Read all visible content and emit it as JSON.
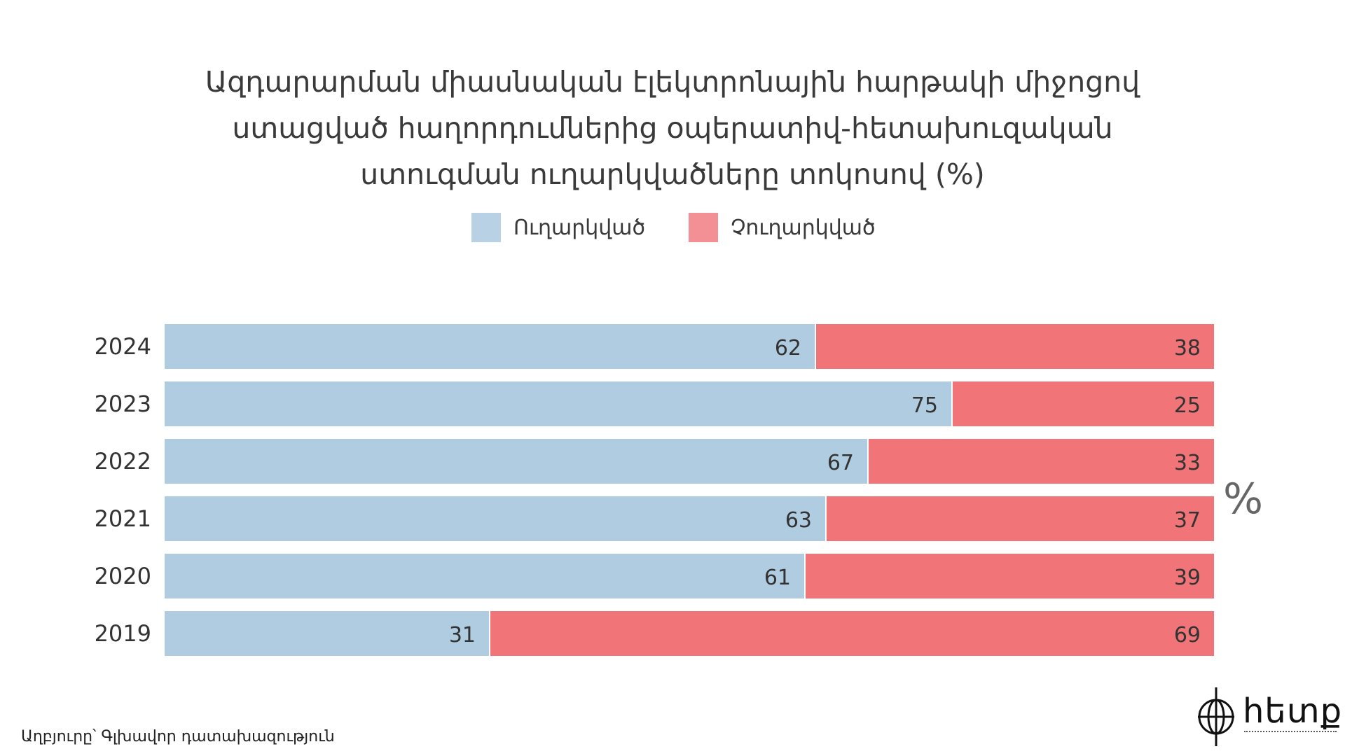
{
  "chart_data": {
    "type": "bar",
    "orientation": "horizontal",
    "stacked": true,
    "title_lines": [
      "Ազդարարման միասնական էլեկտրոնային հարթակի միջոցով",
      "ստացված հաղորդումներից օպերատիվ-հետախուզական",
      "ստուգման ուղարկվածները տոկոսով (%)"
    ],
    "categories": [
      "2024",
      "2023",
      "2022",
      "2021",
      "2020",
      "2019"
    ],
    "series": [
      {
        "name": "Ուղարկված",
        "color": "#b0cce0",
        "values": [
          62,
          75,
          67,
          63,
          61,
          31
        ]
      },
      {
        "name": "Չուղարկված",
        "color": "#f07478",
        "values": [
          38,
          25,
          33,
          37,
          39,
          69
        ]
      }
    ],
    "legend_colors": [
      "#b9d1e4",
      "#f29095"
    ],
    "xlim": [
      0,
      100
    ],
    "unit_label": "%",
    "legend_position": "top-center",
    "grid": false
  },
  "footer": {
    "source": "Աղբյուրը՝ Գլխավոր դատախազություն"
  },
  "logo": {
    "text": "հետք"
  }
}
